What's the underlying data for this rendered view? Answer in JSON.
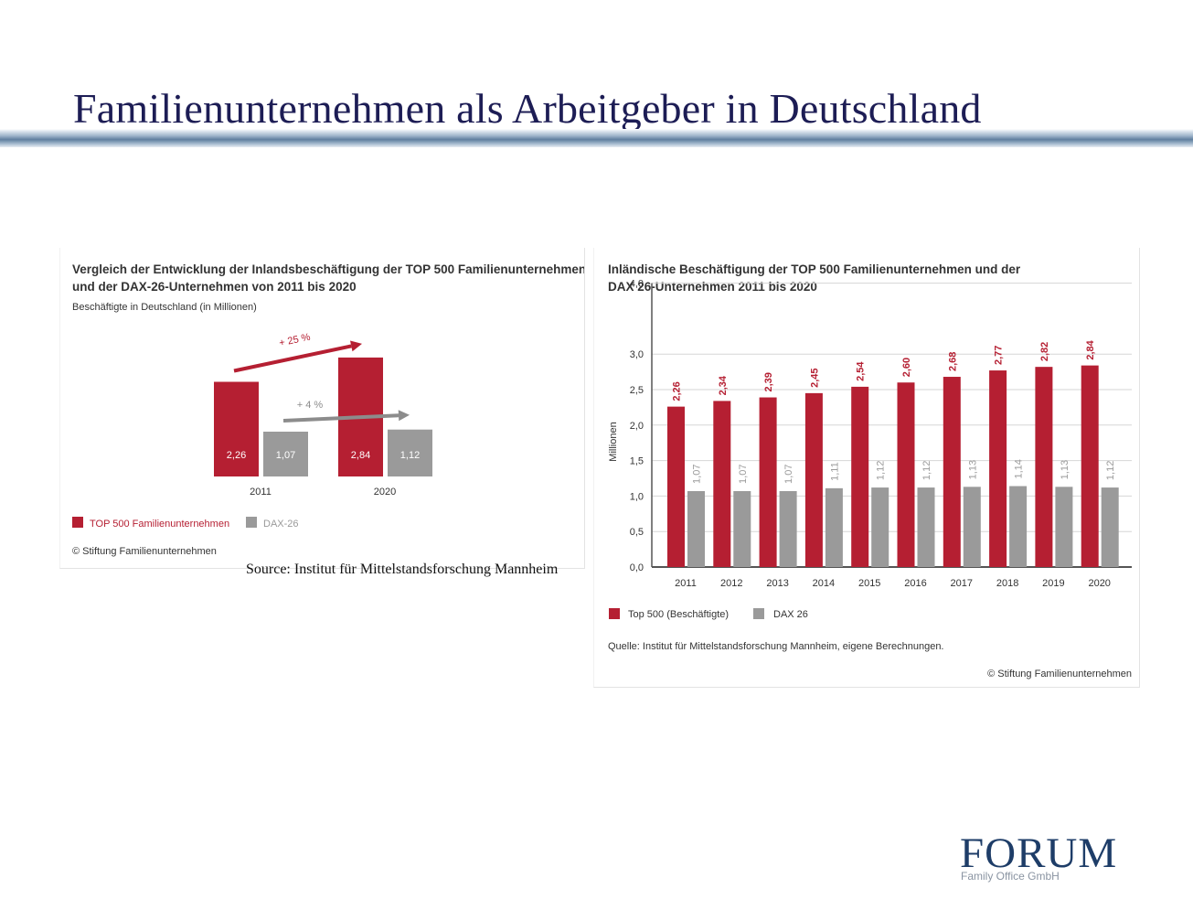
{
  "slide": {
    "title": "Familienunternehmen als Arbeitgeber in Deutschland",
    "source": "Source: Institut für Mittelstandsforschung Mannheim"
  },
  "logo": {
    "name": "FORUM",
    "subtitle": "Family Office GmbH"
  },
  "colors": {
    "red": "#b51f32",
    "gray": "#9a9a9a",
    "title": "#1d1d55"
  },
  "chart_data": [
    {
      "type": "bar",
      "title_line1": "Vergleich der Entwicklung der Inlandsbeschäftigung der TOP 500 Familienunternehmen",
      "title_line2": "und der DAX-26-Unternehmen von 2011 bis 2020",
      "subtitle": "Beschäftigte in Deutschland (in Millionen)",
      "categories": [
        "2011",
        "2020"
      ],
      "series": [
        {
          "name": "TOP 500 Familienunternehmen",
          "values": [
            2.26,
            2.84
          ],
          "labels": [
            "2,26",
            "2,84"
          ],
          "color": "#b51f32"
        },
        {
          "name": "DAX-26",
          "values": [
            1.07,
            1.12
          ],
          "labels": [
            "1,07",
            "1,12"
          ],
          "color": "#9a9a9a"
        }
      ],
      "annotations": [
        "+ 25 %",
        "+ 4 %"
      ],
      "copyright": "© Stiftung Familienunternehmen",
      "legend": "bottom-left",
      "grid": false
    },
    {
      "type": "bar",
      "title_line1": "Inländische Beschäftigung der TOP 500 Familienunternehmen und der",
      "title_line2": "DAX 26-Unternehmen 2011 bis 2020",
      "ylabel": "Millionen",
      "ylim": [
        0,
        4
      ],
      "yticks": [
        "0,0",
        "0,5",
        "1,0",
        "1,5",
        "2,0",
        "2,5",
        "3,0",
        "4,0"
      ],
      "categories": [
        "2011",
        "2012",
        "2013",
        "2014",
        "2015",
        "2016",
        "2017",
        "2018",
        "2019",
        "2020"
      ],
      "series": [
        {
          "name": "Top 500 (Beschäftigte)",
          "color": "#b51f32",
          "values": [
            2.26,
            2.34,
            2.39,
            2.45,
            2.54,
            2.6,
            2.68,
            2.77,
            2.82,
            2.84
          ],
          "labels": [
            "2,26",
            "2,34",
            "2,39",
            "2,45",
            "2,54",
            "2,60",
            "2,68",
            "2,77",
            "2,82",
            "2,84"
          ]
        },
        {
          "name": "DAX 26",
          "color": "#9a9a9a",
          "values": [
            1.07,
            1.07,
            1.07,
            1.11,
            1.12,
            1.12,
            1.13,
            1.14,
            1.13,
            1.12
          ],
          "labels": [
            "1,07",
            "1,07",
            "1,07",
            "1,11",
            "1,12",
            "1,12",
            "1,13",
            "1,14",
            "1,13",
            "1,12"
          ]
        }
      ],
      "source": "Quelle: Institut für Mittelstandsforschung Mannheim, eigene Berechnungen.",
      "copyright": "© Stiftung Familienunternehmen",
      "legend": "bottom-left",
      "grid": true
    }
  ]
}
